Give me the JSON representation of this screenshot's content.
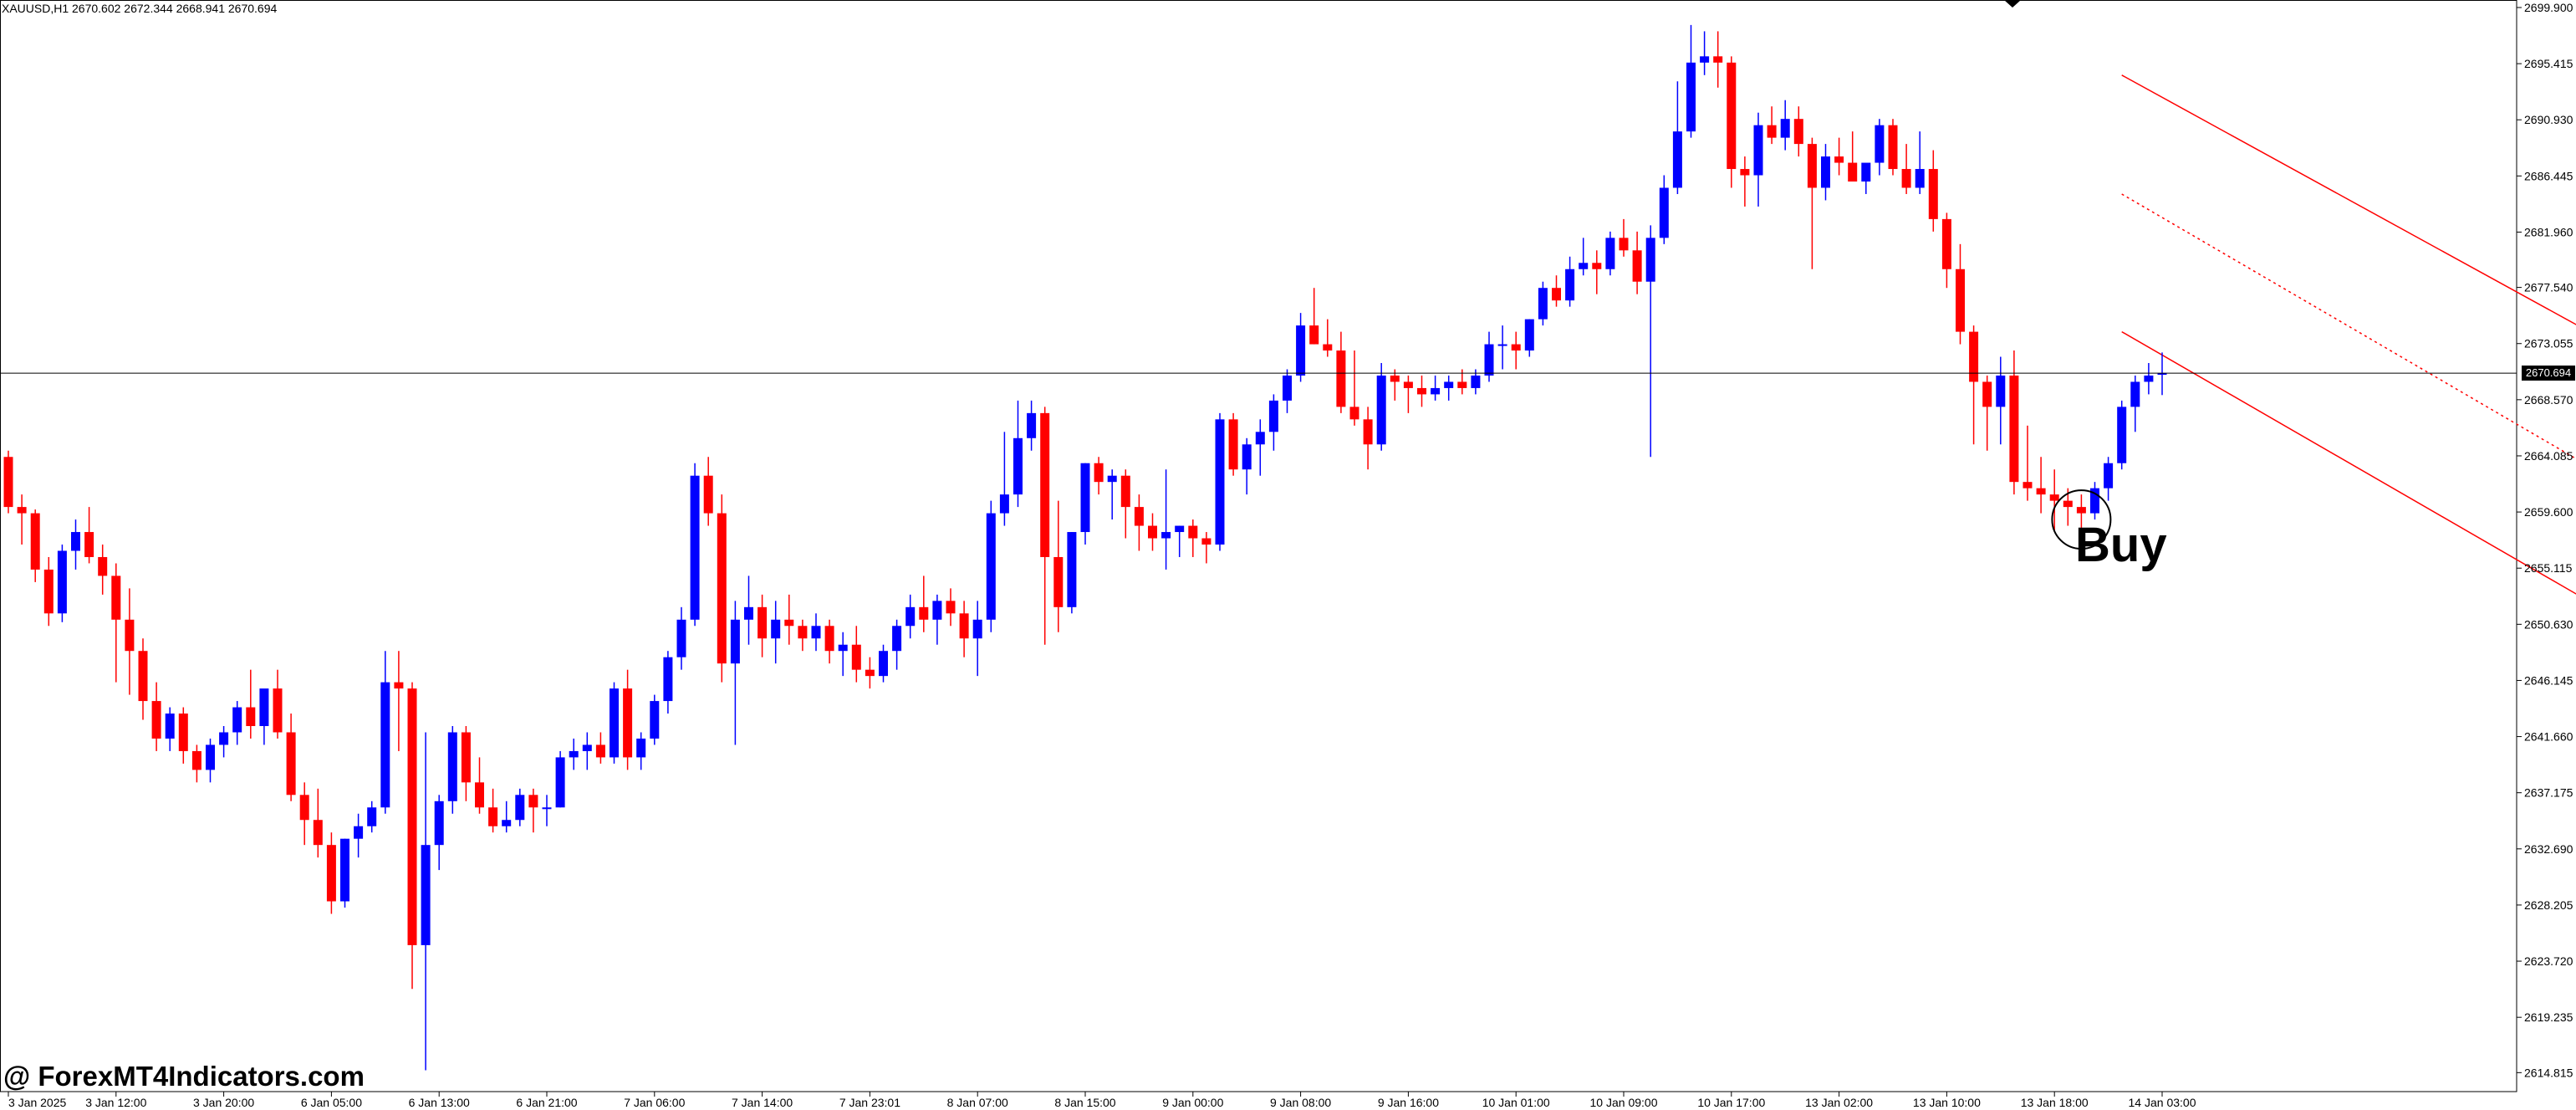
{
  "chart": {
    "symbol_info": "XAUUSD,H1  2670.602 2672.344 2668.941 2670.694",
    "watermark": "@ ForexMT4Indicators.com",
    "signal_label": "Buy",
    "current_price": "2670.694",
    "colors": {
      "background": "#ffffff",
      "bull_candle": "#0000ff",
      "bear_candle": "#ff0000",
      "channel_line": "#ff0000",
      "price_line": "#000000",
      "axis": "#000000"
    }
  },
  "chart_data": {
    "type": "candlestick",
    "title": "XAUUSD,H1",
    "ylim": [
      2613.3,
      2700.5
    ],
    "y_ticks": [
      "2699.900",
      "2695.415",
      "2690.930",
      "2686.445",
      "2681.960",
      "2677.540",
      "2673.055",
      "2668.570",
      "2664.085",
      "2659.600",
      "2655.115",
      "2650.630",
      "2646.145",
      "2641.660",
      "2637.175",
      "2632.690",
      "2628.205",
      "2623.720",
      "2619.235",
      "2614.815"
    ],
    "x_ticks": [
      "3 Jan 2025",
      "3 Jan 12:00",
      "3 Jan 20:00",
      "6 Jan 05:00",
      "6 Jan 13:00",
      "6 Jan 21:00",
      "7 Jan 06:00",
      "7 Jan 14:00",
      "7 Jan 23:01",
      "8 Jan 07:00",
      "8 Jan 15:00",
      "9 Jan 00:00",
      "9 Jan 08:00",
      "9 Jan 16:00",
      "10 Jan 01:00",
      "10 Jan 09:00",
      "10 Jan 17:00",
      "13 Jan 02:00",
      "13 Jan 10:00",
      "13 Jan 18:00",
      "14 Jan 03:00"
    ],
    "x_tick_index": [
      0,
      8,
      16,
      24,
      32,
      40,
      48,
      56,
      64,
      72,
      80,
      88,
      96,
      104,
      112,
      120,
      128,
      136,
      144,
      152,
      160
    ],
    "candles": [
      [
        2664.0,
        2664.5,
        2659.5,
        2660.0
      ],
      [
        2660.0,
        2661.0,
        2657.0,
        2659.5
      ],
      [
        2659.5,
        2659.8,
        2654.0,
        2655.0
      ],
      [
        2655.0,
        2656.0,
        2650.5,
        2651.5
      ],
      [
        2651.5,
        2657.0,
        2650.8,
        2656.5
      ],
      [
        2656.5,
        2659.0,
        2655.0,
        2658.0
      ],
      [
        2658.0,
        2660.0,
        2655.5,
        2656.0
      ],
      [
        2656.0,
        2657.0,
        2653.0,
        2654.5
      ],
      [
        2654.5,
        2655.5,
        2646.0,
        2651.0
      ],
      [
        2651.0,
        2653.5,
        2645.0,
        2648.5
      ],
      [
        2648.5,
        2649.5,
        2643.0,
        2644.5
      ],
      [
        2644.5,
        2646.0,
        2640.5,
        2641.5
      ],
      [
        2641.5,
        2644.0,
        2640.5,
        2643.5
      ],
      [
        2643.5,
        2644.0,
        2639.5,
        2640.5
      ],
      [
        2640.5,
        2641.0,
        2638.0,
        2639.0
      ],
      [
        2639.0,
        2641.5,
        2638.0,
        2641.0
      ],
      [
        2641.0,
        2642.5,
        2640.0,
        2642.0
      ],
      [
        2642.0,
        2644.5,
        2641.0,
        2644.0
      ],
      [
        2644.0,
        2647.0,
        2641.5,
        2642.5
      ],
      [
        2642.5,
        2645.0,
        2641.0,
        2645.5
      ],
      [
        2645.5,
        2647.0,
        2641.5,
        2642.0
      ],
      [
        2642.0,
        2643.5,
        2636.5,
        2637.0
      ],
      [
        2637.0,
        2638.0,
        2633.0,
        2635.0
      ],
      [
        2635.0,
        2637.5,
        2632.0,
        2633.0
      ],
      [
        2633.0,
        2634.0,
        2627.5,
        2628.5
      ],
      [
        2628.5,
        2633.5,
        2628.0,
        2633.5
      ],
      [
        2633.5,
        2635.5,
        2632.0,
        2634.5
      ],
      [
        2634.5,
        2636.5,
        2634.0,
        2636.0
      ],
      [
        2636.0,
        2648.5,
        2635.5,
        2646.0
      ],
      [
        2646.0,
        2648.5,
        2640.5,
        2645.5
      ],
      [
        2645.5,
        2646.0,
        2621.5,
        2625.0
      ],
      [
        2625.0,
        2642.0,
        2615.0,
        2633.0
      ],
      [
        2633.0,
        2637.0,
        2631.0,
        2636.5
      ],
      [
        2636.5,
        2642.5,
        2635.5,
        2642.0
      ],
      [
        2642.0,
        2642.5,
        2636.5,
        2638.0
      ],
      [
        2638.0,
        2640.0,
        2635.5,
        2636.0
      ],
      [
        2636.0,
        2637.5,
        2634.0,
        2634.5
      ],
      [
        2634.5,
        2636.5,
        2634.0,
        2635.0
      ],
      [
        2635.0,
        2637.5,
        2634.5,
        2637.0
      ],
      [
        2637.0,
        2637.5,
        2634.0,
        2636.0
      ],
      [
        2636.0,
        2637.0,
        2634.5,
        2636.0
      ],
      [
        2636.0,
        2640.5,
        2636.0,
        2640.0
      ],
      [
        2640.0,
        2641.5,
        2639.0,
        2640.5
      ],
      [
        2640.5,
        2642.0,
        2639.0,
        2641.0
      ],
      [
        2641.0,
        2642.0,
        2639.5,
        2640.0
      ],
      [
        2640.0,
        2646.0,
        2639.5,
        2645.5
      ],
      [
        2645.5,
        2647.0,
        2639.0,
        2640.0
      ],
      [
        2640.0,
        2642.0,
        2639.0,
        2641.5
      ],
      [
        2641.5,
        2645.0,
        2641.0,
        2644.5
      ],
      [
        2644.5,
        2648.5,
        2643.5,
        2648.0
      ],
      [
        2648.0,
        2652.0,
        2647.0,
        2651.0
      ],
      [
        2651.0,
        2663.5,
        2650.5,
        2662.5
      ],
      [
        2662.5,
        2664.0,
        2658.5,
        2659.5
      ],
      [
        2659.5,
        2661.0,
        2646.0,
        2647.5
      ],
      [
        2647.5,
        2652.5,
        2641.0,
        2651.0
      ],
      [
        2651.0,
        2654.5,
        2649.0,
        2652.0
      ],
      [
        2652.0,
        2653.0,
        2648.0,
        2649.5
      ],
      [
        2649.5,
        2652.5,
        2647.5,
        2651.0
      ],
      [
        2651.0,
        2653.0,
        2649.0,
        2650.5
      ],
      [
        2650.5,
        2651.0,
        2648.5,
        2649.5
      ],
      [
        2649.5,
        2651.5,
        2648.5,
        2650.5
      ],
      [
        2650.5,
        2651.0,
        2647.5,
        2648.5
      ],
      [
        2648.5,
        2650.0,
        2646.5,
        2649.0
      ],
      [
        2649.0,
        2650.5,
        2646.0,
        2647.0
      ],
      [
        2647.0,
        2648.0,
        2645.5,
        2646.5
      ],
      [
        2646.5,
        2649.0,
        2646.0,
        2648.5
      ],
      [
        2648.5,
        2651.0,
        2647.0,
        2650.5
      ],
      [
        2650.5,
        2653.0,
        2649.5,
        2652.0
      ],
      [
        2652.0,
        2654.5,
        2650.0,
        2651.0
      ],
      [
        2651.0,
        2653.0,
        2649.0,
        2652.5
      ],
      [
        2652.5,
        2653.5,
        2650.5,
        2651.5
      ],
      [
        2651.5,
        2652.5,
        2648.0,
        2649.5
      ],
      [
        2649.5,
        2652.5,
        2646.5,
        2651.0
      ],
      [
        2651.0,
        2660.5,
        2650.0,
        2659.5
      ],
      [
        2659.5,
        2666.0,
        2658.5,
        2661.0
      ],
      [
        2661.0,
        2668.5,
        2660.0,
        2665.5
      ],
      [
        2665.5,
        2668.5,
        2664.5,
        2667.5
      ],
      [
        2667.5,
        2668.0,
        2649.0,
        2656.0
      ],
      [
        2656.0,
        2660.5,
        2650.0,
        2652.0
      ],
      [
        2652.0,
        2658.0,
        2651.5,
        2658.0
      ],
      [
        2658.0,
        2663.5,
        2657.0,
        2663.5
      ],
      [
        2663.5,
        2664.0,
        2661.0,
        2662.0
      ],
      [
        2662.0,
        2663.0,
        2659.0,
        2662.5
      ],
      [
        2662.5,
        2663.0,
        2657.5,
        2660.0
      ],
      [
        2660.0,
        2661.0,
        2656.5,
        2658.5
      ],
      [
        2658.5,
        2659.5,
        2656.5,
        2657.5
      ],
      [
        2657.5,
        2663.0,
        2655.0,
        2658.0
      ],
      [
        2658.0,
        2658.5,
        2656.0,
        2658.5
      ],
      [
        2658.5,
        2659.0,
        2656.0,
        2657.5
      ],
      [
        2657.5,
        2658.0,
        2655.5,
        2657.0
      ],
      [
        2657.0,
        2667.5,
        2656.5,
        2667.0
      ],
      [
        2667.0,
        2667.5,
        2662.5,
        2663.0
      ],
      [
        2663.0,
        2665.5,
        2661.0,
        2665.0
      ],
      [
        2665.0,
        2667.0,
        2662.5,
        2666.0
      ],
      [
        2666.0,
        2669.0,
        2664.5,
        2668.5
      ],
      [
        2668.5,
        2671.0,
        2667.5,
        2670.5
      ],
      [
        2670.5,
        2675.5,
        2670.0,
        2674.5
      ],
      [
        2674.5,
        2677.5,
        2673.0,
        2673.0
      ],
      [
        2673.0,
        2675.0,
        2672.0,
        2672.5
      ],
      [
        2672.5,
        2674.0,
        2667.5,
        2668.0
      ],
      [
        2668.0,
        2672.5,
        2666.5,
        2667.0
      ],
      [
        2667.0,
        2668.0,
        2663.0,
        2665.0
      ],
      [
        2665.0,
        2671.5,
        2664.5,
        2670.5
      ],
      [
        2670.5,
        2671.0,
        2668.5,
        2670.0
      ],
      [
        2670.0,
        2670.5,
        2667.5,
        2669.5
      ],
      [
        2669.5,
        2670.5,
        2668.0,
        2669.0
      ],
      [
        2669.0,
        2670.5,
        2668.5,
        2669.5
      ],
      [
        2669.5,
        2670.5,
        2668.5,
        2670.0
      ],
      [
        2670.0,
        2671.0,
        2669.0,
        2669.5
      ],
      [
        2669.5,
        2671.0,
        2669.0,
        2670.5
      ],
      [
        2670.5,
        2674.0,
        2670.0,
        2673.0
      ],
      [
        2673.0,
        2674.5,
        2671.0,
        2673.0
      ],
      [
        2673.0,
        2674.0,
        2671.0,
        2672.5
      ],
      [
        2672.5,
        2675.0,
        2672.0,
        2675.0
      ],
      [
        2675.0,
        2678.0,
        2674.5,
        2677.5
      ],
      [
        2677.5,
        2678.5,
        2676.0,
        2676.5
      ],
      [
        2676.5,
        2680.0,
        2676.0,
        2679.0
      ],
      [
        2679.0,
        2681.5,
        2678.5,
        2679.5
      ],
      [
        2679.5,
        2680.5,
        2677.0,
        2679.0
      ],
      [
        2679.0,
        2682.0,
        2678.5,
        2681.5
      ],
      [
        2681.5,
        2683.0,
        2680.0,
        2680.5
      ],
      [
        2680.5,
        2682.0,
        2677.0,
        2678.0
      ],
      [
        2678.0,
        2682.5,
        2664.0,
        2681.5
      ],
      [
        2681.5,
        2686.5,
        2681.0,
        2685.5
      ],
      [
        2685.5,
        2694.0,
        2685.0,
        2690.0
      ],
      [
        2690.0,
        2698.5,
        2689.5,
        2695.5
      ],
      [
        2695.5,
        2698.0,
        2694.5,
        2696.0
      ],
      [
        2696.0,
        2698.0,
        2693.5,
        2695.5
      ],
      [
        2695.5,
        2696.0,
        2685.5,
        2687.0
      ],
      [
        2687.0,
        2688.0,
        2684.0,
        2686.5
      ],
      [
        2686.5,
        2691.5,
        2684.0,
        2690.5
      ],
      [
        2690.5,
        2692.0,
        2689.0,
        2689.5
      ],
      [
        2689.5,
        2692.5,
        2688.5,
        2691.0
      ],
      [
        2691.0,
        2692.0,
        2688.0,
        2689.0
      ],
      [
        2689.0,
        2689.5,
        2679.0,
        2685.5
      ],
      [
        2685.5,
        2689.0,
        2684.5,
        2688.0
      ],
      [
        2688.0,
        2689.5,
        2686.5,
        2687.5
      ],
      [
        2687.5,
        2690.0,
        2686.0,
        2686.0
      ],
      [
        2686.0,
        2687.0,
        2685.0,
        2687.5
      ],
      [
        2687.5,
        2691.0,
        2686.5,
        2690.5
      ],
      [
        2690.5,
        2691.0,
        2686.5,
        2687.0
      ],
      [
        2687.0,
        2689.0,
        2685.0,
        2685.5
      ],
      [
        2685.5,
        2690.0,
        2685.0,
        2687.0
      ],
      [
        2687.0,
        2688.5,
        2682.0,
        2683.0
      ],
      [
        2683.0,
        2683.5,
        2677.5,
        2679.0
      ],
      [
        2679.0,
        2681.0,
        2673.0,
        2674.0
      ],
      [
        2674.0,
        2674.5,
        2665.0,
        2670.0
      ],
      [
        2670.0,
        2670.5,
        2664.5,
        2668.0
      ],
      [
        2668.0,
        2672.0,
        2665.0,
        2670.5
      ],
      [
        2670.5,
        2672.5,
        2661.0,
        2662.0
      ],
      [
        2662.0,
        2666.5,
        2660.5,
        2661.5
      ],
      [
        2661.5,
        2664.0,
        2659.5,
        2661.0
      ],
      [
        2661.0,
        2663.0,
        2658.0,
        2660.5
      ],
      [
        2660.5,
        2661.5,
        2658.5,
        2660.0
      ],
      [
        2660.0,
        2661.0,
        2657.5,
        2659.5
      ],
      [
        2659.5,
        2662.0,
        2659.0,
        2661.5
      ],
      [
        2661.5,
        2664.0,
        2660.5,
        2663.5
      ],
      [
        2663.5,
        2668.5,
        2663.0,
        2668.0
      ],
      [
        2668.0,
        2670.5,
        2666.0,
        2670.0
      ],
      [
        2670.0,
        2671.5,
        2669.0,
        2670.5
      ],
      [
        2670.602,
        2672.344,
        2668.941,
        2670.694
      ]
    ],
    "channel_lines": [
      {
        "style": "solid",
        "points": [
          [
            157,
            2694.5
          ],
          [
            240,
            2645.5
          ]
        ]
      },
      {
        "style": "dotted",
        "points": [
          [
            157,
            2685.0
          ],
          [
            240,
            2633.0
          ]
        ]
      },
      {
        "style": "solid",
        "points": [
          [
            157,
            2674.0
          ],
          [
            240,
            2622.5
          ]
        ]
      }
    ],
    "buy_marker": {
      "index": 154,
      "price": 2659.0
    }
  }
}
